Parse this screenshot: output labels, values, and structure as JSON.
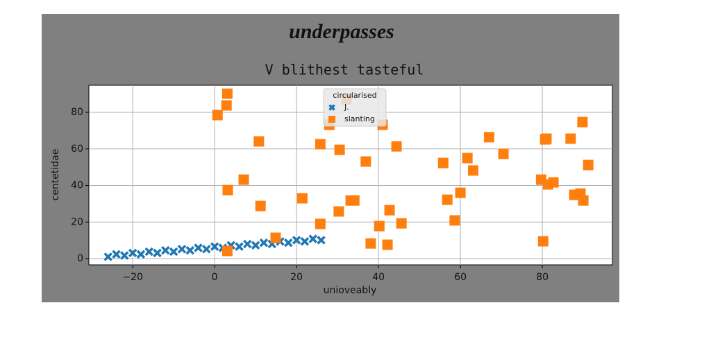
{
  "chart_data": {
    "type": "scatter",
    "title": "underpasses",
    "subtitle": "V blithest tasteful",
    "x_label": "unioveably",
    "y_label": "centetidae",
    "legend_title": "circularised",
    "legend": "upper center",
    "grid": true,
    "xlim": [
      -30.7,
      97.1
    ],
    "ylim": [
      -3.4,
      94.8
    ],
    "xticks": [
      {
        "value": -20,
        "label": "−20"
      },
      0,
      20,
      40,
      60,
      80
    ],
    "yticks": [
      0,
      20,
      40,
      60,
      80
    ],
    "series": [
      {
        "name": "J.",
        "color": "#1f77b4",
        "marker": "x",
        "x": [
          -26,
          -24,
          -22,
          -20,
          -18,
          -16,
          -14,
          -12,
          -10,
          -8,
          -6,
          -4,
          -2,
          0,
          2,
          4,
          6,
          8,
          10,
          12,
          14,
          16,
          18,
          20,
          22,
          24,
          26
        ],
        "values": [
          1.0,
          2.4,
          1.7,
          3.1,
          2.4,
          3.8,
          3.1,
          4.5,
          3.8,
          5.2,
          4.5,
          5.9,
          5.2,
          6.6,
          5.9,
          7.3,
          6.6,
          8.0,
          7.3,
          8.7,
          8.0,
          9.4,
          8.7,
          10.1,
          9.4,
          10.8,
          10.1
        ]
      },
      {
        "name": "slanting",
        "color": "#ff7f0e",
        "marker": "square",
        "x": [
          3.1,
          2.9,
          0.7,
          10.8,
          3.2,
          7.1,
          11.2,
          14.9,
          3.1,
          21.4,
          25.8,
          25.8,
          28.0,
          32.2,
          30.5,
          30.3,
          33.2,
          34.1,
          36.9,
          38.1,
          40.2,
          41.0,
          42.2,
          42.7,
          44.4,
          45.6,
          55.8,
          56.8,
          58.6,
          60.0,
          61.7,
          63.1,
          67.0,
          70.5,
          79.7,
          80.2,
          80.7,
          81.4,
          82.7,
          81.0,
          86.9,
          87.8,
          89.3,
          89.8,
          90.0,
          91.2
        ],
        "values": [
          90.2,
          83.8,
          78.5,
          64.1,
          37.5,
          43.2,
          28.8,
          11.4,
          4.2,
          33.0,
          62.6,
          19.0,
          73.2,
          87.2,
          59.5,
          25.8,
          31.8,
          31.8,
          53.1,
          8.3,
          17.8,
          73.2,
          7.6,
          26.5,
          61.4,
          19.3,
          52.3,
          32.2,
          20.9,
          36.0,
          55.0,
          48.2,
          66.4,
          57.3,
          43.2,
          9.5,
          65.2,
          40.6,
          41.7,
          65.6,
          65.6,
          34.9,
          35.6,
          74.7,
          31.8,
          51.2
        ]
      }
    ]
  }
}
